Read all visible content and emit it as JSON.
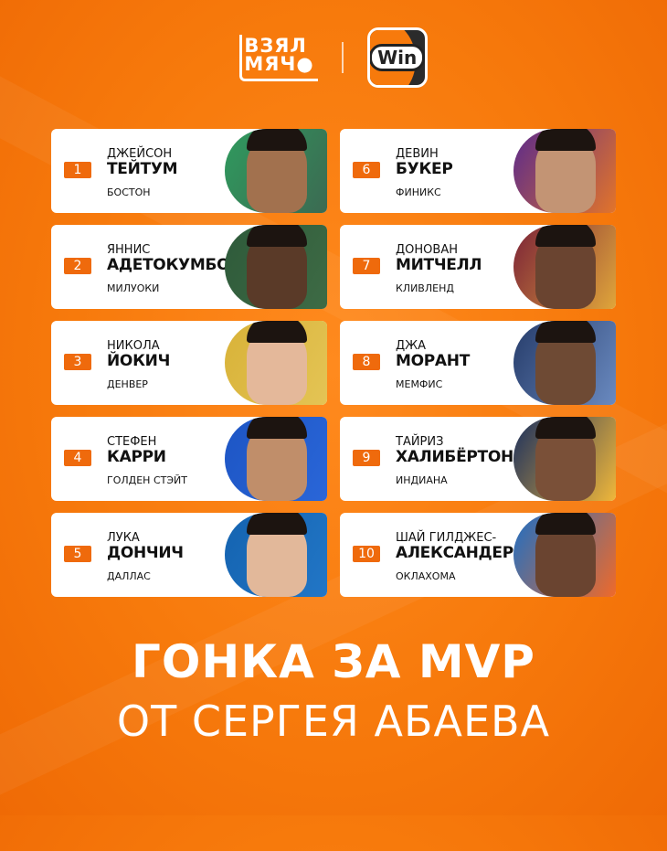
{
  "logos": {
    "left": "ВЗЯЛ МЯЧ",
    "right": "Win"
  },
  "players": [
    {
      "rank": "1",
      "first": "ДЖЕЙСОН",
      "last": "ТЕЙТУМ",
      "team": "БОСТОН",
      "c1": "#2f9a5e",
      "c2": "#3c6a52",
      "skin": "#a2714e"
    },
    {
      "rank": "2",
      "first": "ЯННИС",
      "last": "АДЕТОКУМБО",
      "team": "МИЛУОКИ",
      "c1": "#2e5a3a",
      "c2": "#3e6b45",
      "skin": "#5a3a28"
    },
    {
      "rank": "3",
      "first": "НИКОЛА",
      "last": "ЙОКИЧ",
      "team": "ДЕНВЕР",
      "c1": "#d8b238",
      "c2": "#e4c455",
      "skin": "#e4b89a"
    },
    {
      "rank": "4",
      "first": "СТЕФЕН",
      "last": "КАРРИ",
      "team": "ГОЛДЕН СТЭЙТ",
      "c1": "#1d55c4",
      "c2": "#2a66d8",
      "skin": "#c08e6a"
    },
    {
      "rank": "5",
      "first": "ЛУКА",
      "last": "ДОНЧИЧ",
      "team": "ДАЛЛАС",
      "c1": "#1463b0",
      "c2": "#2276c6",
      "skin": "#e2b89a"
    },
    {
      "rank": "6",
      "first": "ДЕВИН",
      "last": "БУКЕР",
      "team": "ФИНИКС",
      "c1": "#5b2a8c",
      "c2": "#e2742a",
      "skin": "#c39474"
    },
    {
      "rank": "7",
      "first": "ДОНОВАН",
      "last": "МИТЧЕЛЛ",
      "team": "КЛИВЛЕНД",
      "c1": "#7b2238",
      "c2": "#e0a63a",
      "skin": "#6a4430"
    },
    {
      "rank": "8",
      "first": "ДЖА",
      "last": "МОРАНТ",
      "team": "МЕМФИС",
      "c1": "#263c6a",
      "c2": "#6a8ac0",
      "skin": "#6e4a34"
    },
    {
      "rank": "9",
      "first": "ТАЙРИЗ",
      "last": "ХАЛИБЁРТОН",
      "team": "ИНДИАНА",
      "c1": "#1a2f5e",
      "c2": "#f0b73a",
      "skin": "#7a5038"
    },
    {
      "rank": "10",
      "first": "ШАЙ ГИЛДЖЕС-",
      "last": "АЛЕКСАНДЕР",
      "team": "ОКЛАХОМА",
      "c1": "#1e6fc4",
      "c2": "#ef6a2a",
      "skin": "#6a4430"
    }
  ],
  "title": {
    "line1": "ГОНКА ЗА MVP",
    "line2": "ОТ СЕРГЕЯ АБАЕВА"
  }
}
